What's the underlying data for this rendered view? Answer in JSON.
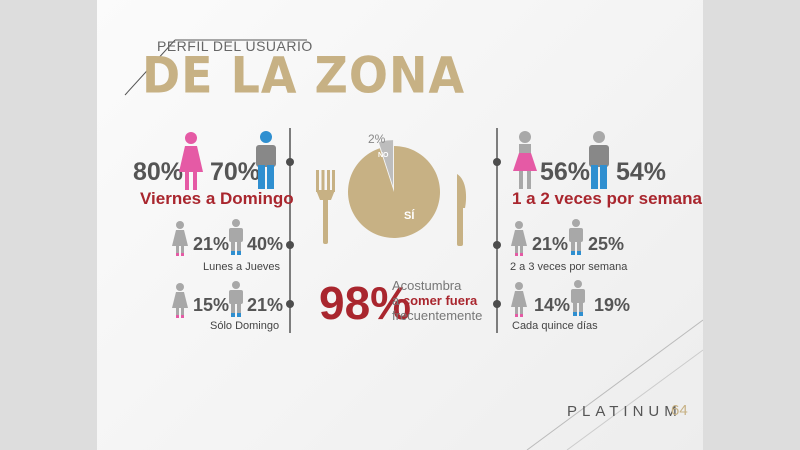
{
  "title": {
    "pre": "PERFIL DEL USUARIO",
    "main": "DE LA ZONA"
  },
  "colors": {
    "gold": "#c7b184",
    "red": "#a9262e",
    "pink": "#e55aa5",
    "blue": "#2f8fd0",
    "gray": "#a8a8a8"
  },
  "left": {
    "row1": {
      "female": "80%",
      "male": "70%",
      "label": "Viernes a Domingo"
    },
    "row2": {
      "female": "21%",
      "male": "40%",
      "label": "Lunes a Jueves"
    },
    "row3": {
      "female": "15%",
      "male": "21%",
      "label": "Sólo Domingo"
    }
  },
  "right": {
    "row1": {
      "female": "56%",
      "male": "54%",
      "label": "1 a 2 veces por semana"
    },
    "row2": {
      "female": "21%",
      "male": "25%",
      "label": "2 a 3 veces por semana"
    },
    "row3": {
      "female": "14%",
      "male": "19%",
      "label": "Cada quince días"
    }
  },
  "pie": {
    "yes_label": "SÍ",
    "no_label": "NO",
    "no_value": "2%",
    "yes_pct": 98,
    "no_pct": 2
  },
  "center": {
    "big": "98%",
    "line1": "Acostumbra",
    "line2a": "a ",
    "line2b": "comer fuera",
    "line3": "frecuentemente"
  },
  "logo": {
    "text": "PLATINUM",
    "num": "64"
  }
}
